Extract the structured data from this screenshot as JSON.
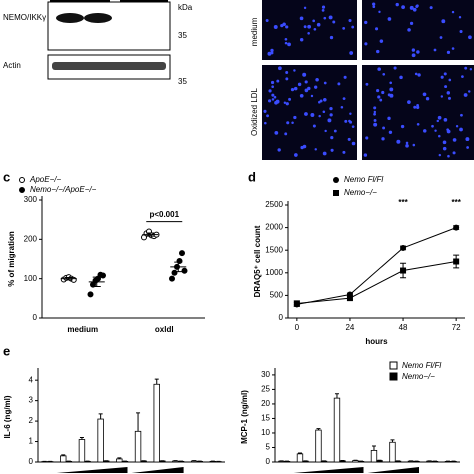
{
  "blot": {
    "rows": [
      "NEMO/IKKγ",
      "Actin"
    ],
    "unit": "kDa",
    "markers": [
      "35",
      "35"
    ]
  },
  "microscopy": {
    "rows": [
      "medium",
      "Oxidized LDL"
    ]
  },
  "panels": [
    "c",
    "d",
    "e"
  ],
  "chart_data": [
    {
      "type": "dot",
      "ylabel": "% of migration",
      "categories": [
        "medium",
        "oxldl"
      ],
      "ylim": [
        0,
        300
      ],
      "yticks": [
        0,
        100,
        200,
        300
      ],
      "series": [
        {
          "name": "ApoE−/−",
          "color": "#000000",
          "marker": "open",
          "values": [
            100,
            212
          ],
          "errors": [
            3,
            4
          ],
          "points": [
            [
              98,
              102,
              104,
              100,
              97
            ],
            [
              205,
              215,
              220,
              210,
              208,
              212
            ]
          ]
        },
        {
          "name": "Nemo−/−/ApoE−/−",
          "color": "#000000",
          "marker": "filled",
          "values": [
            92,
            130
          ],
          "errors": [
            12,
            12
          ],
          "points": [
            [
              60,
              85,
              95,
              100,
              110,
              108
            ],
            [
              100,
              115,
              130,
              145,
              165,
              120
            ]
          ]
        }
      ],
      "annotations": [
        "p<0.001"
      ]
    },
    {
      "type": "line",
      "ylabel": "DRAQ5⁺ cell count",
      "xlabel": "hours",
      "x": [
        0,
        24,
        48,
        72
      ],
      "xlim": [
        -4,
        76
      ],
      "xticks": [
        0,
        24,
        48,
        72
      ],
      "ylim": [
        0,
        2500
      ],
      "yticks": [
        0,
        500,
        1000,
        1500,
        2000,
        2500
      ],
      "series": [
        {
          "name": "Nemo Fl/Fl",
          "color": "#000000",
          "marker": "circle",
          "values": [
            300,
            520,
            1550,
            2000
          ],
          "errors": [
            40,
            30,
            40,
            40
          ]
        },
        {
          "name": "Nemo−/−",
          "color": "#000000",
          "marker": "square",
          "values": [
            320,
            440,
            1050,
            1250
          ],
          "errors": [
            60,
            40,
            160,
            140
          ]
        }
      ],
      "annotations": [
        {
          "x": 48,
          "label": "***"
        },
        {
          "x": 72,
          "label": "***"
        }
      ]
    },
    {
      "type": "bar",
      "ylabel": "IL-6 (ng/ml)",
      "categories": [
        null,
        null,
        null,
        null,
        null,
        null,
        null,
        null,
        null,
        null
      ],
      "ylim": [
        0,
        4.4
      ],
      "yticks": [
        0,
        1,
        2,
        3,
        4
      ],
      "series": [
        {
          "color": "#ffffff",
          "values": [
            0.02,
            0.3,
            1.1,
            2.1,
            0.15,
            1.5,
            3.8,
            0.05,
            0.05,
            0.03
          ],
          "errors": [
            0.01,
            0.05,
            0.1,
            0.25,
            0.05,
            0.9,
            0.25,
            0.02,
            0.02,
            0.01
          ]
        },
        {
          "color": "#000000",
          "values": [
            0.02,
            0.03,
            0.03,
            0.05,
            0.03,
            0.05,
            0.05,
            0.03,
            0.03,
            0.02
          ],
          "errors": [
            0.01,
            0.01,
            0.01,
            0.01,
            0.01,
            0.01,
            0.01,
            0.01,
            0.01,
            0.01
          ]
        }
      ]
    },
    {
      "type": "bar",
      "ylabel": "MCP-1 (ng/ml)",
      "categories": [
        null,
        null,
        null,
        null,
        null,
        null,
        null,
        null,
        null,
        null
      ],
      "ylim": [
        0,
        31
      ],
      "yticks": [
        0,
        5,
        10,
        15,
        20,
        25,
        30
      ],
      "legend": "upper right",
      "series": [
        {
          "name": "Nemo Fl/Fl",
          "color": "#ffffff",
          "values": [
            0.3,
            2.8,
            11,
            22,
            0.5,
            4,
            6.8,
            0.3,
            0.3,
            0.2
          ],
          "errors": [
            0.1,
            0.3,
            0.5,
            1.5,
            0.1,
            1.5,
            0.8,
            0.1,
            0.1,
            0.1
          ]
        },
        {
          "name": "Nemo−/−",
          "color": "#000000",
          "values": [
            0.2,
            0.3,
            0.3,
            0.4,
            0.2,
            0.5,
            0.3,
            0.2,
            0.2,
            0.2
          ],
          "errors": [
            0.1,
            0.1,
            0.1,
            0.1,
            0.1,
            0.1,
            0.1,
            0.1,
            0.1,
            0.1
          ]
        }
      ]
    }
  ]
}
